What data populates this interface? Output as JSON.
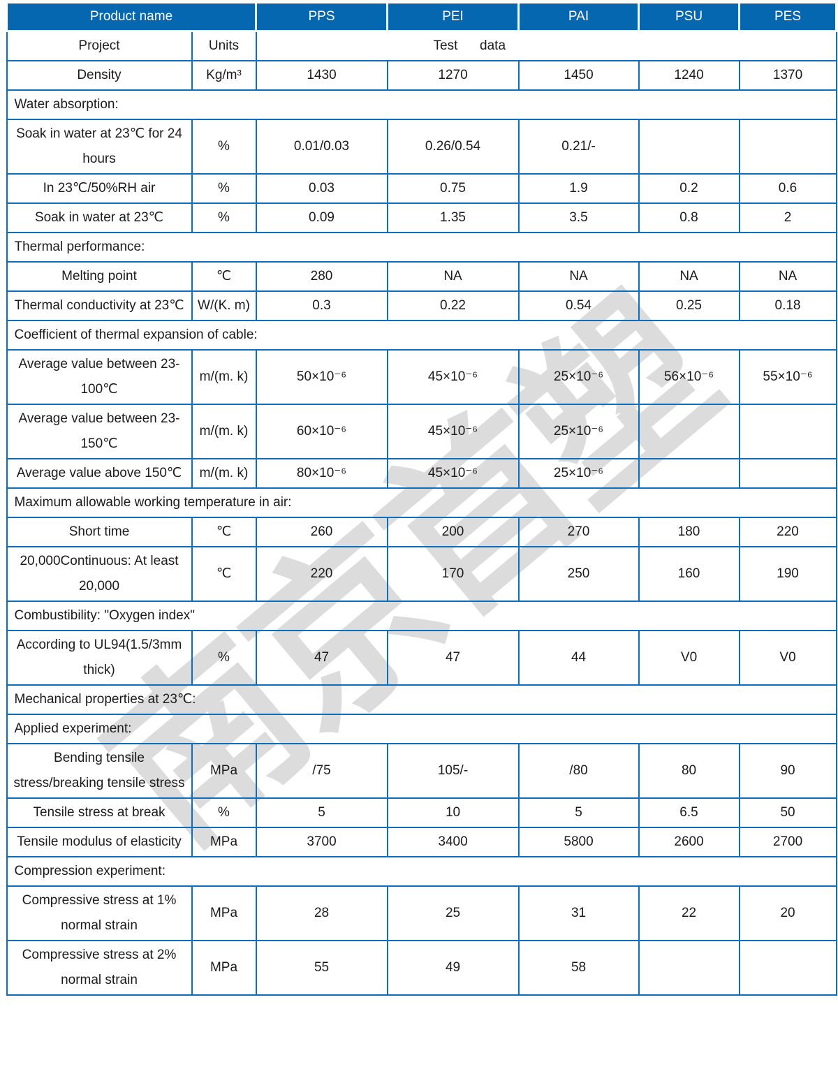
{
  "watermark": {
    "text": "南京首塑",
    "color": "#dcdcdc"
  },
  "colors": {
    "header_bg": "#0667B1",
    "border": "#0B6FBE",
    "header_text": "#ffffff",
    "body_text": "#1b1b1b"
  },
  "header": {
    "product_name": "Product name",
    "columns": [
      "PPS",
      "PEI",
      "PAI",
      "PSU",
      "PES"
    ]
  },
  "rows": [
    {
      "type": "info",
      "name": "Project",
      "units": "Units",
      "merged": "Test      data"
    },
    {
      "type": "data",
      "name": "Density",
      "units": "Kg/m³",
      "values": [
        "1430",
        "1270",
        "1450",
        "1240",
        "1370"
      ]
    },
    {
      "type": "section",
      "label": "Water absorption:"
    },
    {
      "type": "data",
      "name": "Soak in water at 23℃ for 24 hours",
      "units": "%",
      "values": [
        "0.01/0.03",
        "0.26/0.54",
        "0.21/-",
        "",
        ""
      ]
    },
    {
      "type": "data",
      "name": "In 23℃/50%RH air",
      "units": "%",
      "values": [
        "0.03",
        "0.75",
        "1.9",
        "0.2",
        "0.6"
      ]
    },
    {
      "type": "data",
      "name": "Soak in water at 23℃",
      "units": "%",
      "values": [
        "0.09",
        "1.35",
        "3.5",
        "0.8",
        "2"
      ]
    },
    {
      "type": "section",
      "label": "Thermal performance:"
    },
    {
      "type": "data",
      "name": "Melting point",
      "units": "℃",
      "values": [
        "280",
        "NA",
        "NA",
        "NA",
        "NA"
      ]
    },
    {
      "type": "data",
      "name": "Thermal conductivity at 23℃",
      "units": "W/(K. m)",
      "values": [
        "0.3",
        "0.22",
        "0.54",
        "0.25",
        "0.18"
      ]
    },
    {
      "type": "section",
      "label": "Coefficient of thermal expansion of cable:"
    },
    {
      "type": "data",
      "name": "Average value between 23-100℃",
      "units": "m/(m. k)",
      "values": [
        "50×10⁻⁶",
        "45×10⁻⁶",
        "25×10⁻⁶",
        "56×10⁻⁶",
        "55×10⁻⁶"
      ]
    },
    {
      "type": "data",
      "name": "Average value between 23-150℃",
      "units": "m/(m. k)",
      "values": [
        "60×10⁻⁶",
        "45×10⁻⁶",
        "25×10⁻⁶",
        "",
        ""
      ]
    },
    {
      "type": "data",
      "name": "Average value above 150℃",
      "units": "m/(m. k)",
      "values": [
        "80×10⁻⁶",
        "45×10⁻⁶",
        "25×10⁻⁶",
        "",
        ""
      ]
    },
    {
      "type": "section",
      "label": "Maximum allowable working temperature in air:"
    },
    {
      "type": "data",
      "name": "Short time",
      "units": "℃",
      "values": [
        "260",
        "200",
        "270",
        "180",
        "220"
      ]
    },
    {
      "type": "data",
      "name": "20,000Continuous: At least 20,000",
      "units": "℃",
      "values": [
        "220",
        "170",
        "250",
        "160",
        "190"
      ]
    },
    {
      "type": "section",
      "label": "Combustibility: \"Oxygen index\""
    },
    {
      "type": "data",
      "name": "According to UL94(1.5/3mm thick)",
      "units": "%",
      "values": [
        "47",
        "47",
        "44",
        "V0",
        "V0"
      ]
    },
    {
      "type": "section",
      "label": "Mechanical properties at 23℃:"
    },
    {
      "type": "section",
      "label": "Applied experiment:"
    },
    {
      "type": "data",
      "name": "Bending tensile stress/breaking tensile stress",
      "units": "MPa",
      "values": [
        "/75",
        "105/-",
        "/80",
        "80",
        "90"
      ]
    },
    {
      "type": "data",
      "name": "Tensile stress at break",
      "units": "%",
      "values": [
        "5",
        "10",
        "5",
        "6.5",
        "50"
      ]
    },
    {
      "type": "data",
      "name": "Tensile modulus of elasticity",
      "units": "MPa",
      "values": [
        "3700",
        "3400",
        "5800",
        "2600",
        "2700"
      ]
    },
    {
      "type": "section",
      "label": "Compression experiment:"
    },
    {
      "type": "data",
      "name": "Compressive stress at 1% normal strain",
      "units": "MPa",
      "values": [
        "28",
        "25",
        "31",
        "22",
        "20"
      ]
    },
    {
      "type": "data",
      "name": "Compressive stress at 2% normal strain",
      "units": "MPa",
      "values": [
        "55",
        "49",
        "58",
        "",
        ""
      ]
    }
  ]
}
